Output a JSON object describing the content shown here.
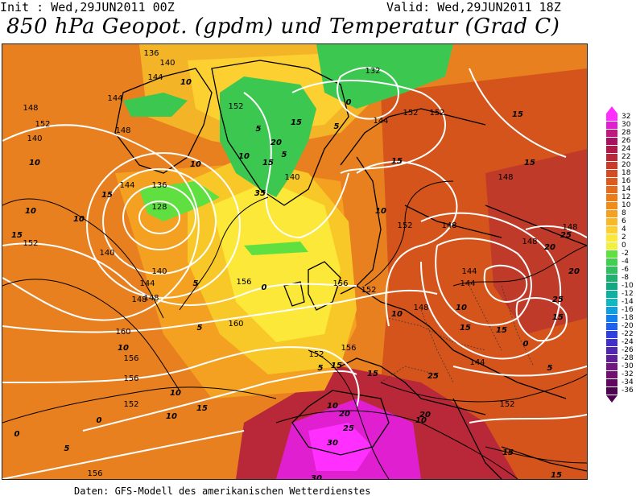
{
  "header": {
    "init": "Init : Wed,29JUN2011 00Z",
    "valid": "Valid: Wed,29JUN2011 18Z",
    "title": "850 hPa Geopot. (gpdm) und Temperatur (Grad C)"
  },
  "footer": "Daten: GFS-Modell des amerikanischen Wetterdienstes",
  "colorbar": {
    "values": [
      "32",
      "30",
      "28",
      "26",
      "24",
      "22",
      "20",
      "18",
      "16",
      "14",
      "12",
      "10",
      "8",
      "6",
      "4",
      "2",
      "0",
      "-2",
      "-4",
      "-6",
      "-8",
      "-10",
      "-12",
      "-14",
      "-16",
      "-18",
      "-20",
      "-22",
      "-24",
      "-26",
      "-28",
      "-30",
      "-32",
      "-34",
      "-36"
    ],
    "colors": [
      "#ff30ff",
      "#e020d0",
      "#c01880",
      "#a81060",
      "#b01848",
      "#b82838",
      "#c83c2c",
      "#d44c24",
      "#dc5c20",
      "#e46c1c",
      "#ec7c18",
      "#f08c18",
      "#f4a020",
      "#f8b828",
      "#fcd030",
      "#fce838",
      "#f0f040",
      "#60e040",
      "#40d050",
      "#30c060",
      "#20b070",
      "#10a880",
      "#10b0a0",
      "#10b8c0",
      "#10a0e0",
      "#1080f0",
      "#2060f0",
      "#3040e0",
      "#4030c8",
      "#5028b0",
      "#602098",
      "#701880",
      "#701070",
      "#600860",
      "#500050"
    ]
  },
  "map_labels": {
    "geopotential": [
      "136",
      "140",
      "144",
      "148",
      "152",
      "156",
      "160",
      "128",
      "132"
    ],
    "temperature": [
      "0",
      "5",
      "10",
      "15",
      "20",
      "25",
      "30",
      "35"
    ]
  },
  "placed_labels": [
    {
      "t": "136",
      "k": "g"
    },
    {
      "t": "140",
      "k": "g"
    },
    {
      "t": "144",
      "k": "g"
    },
    {
      "t": "148",
      "k": "g"
    },
    {
      "t": "152",
      "k": "g"
    },
    {
      "t": "140",
      "k": "g"
    },
    {
      "t": "144",
      "k": "g"
    },
    {
      "t": "148",
      "k": "g"
    },
    {
      "t": "152",
      "k": "g"
    },
    {
      "t": "156",
      "k": "g"
    },
    {
      "t": "160",
      "k": "g"
    },
    {
      "t": "156",
      "k": "g"
    },
    {
      "t": "160",
      "k": "g"
    },
    {
      "t": "156",
      "k": "g"
    },
    {
      "t": "152",
      "k": "g"
    },
    {
      "t": "148",
      "k": "g"
    },
    {
      "t": "144",
      "k": "g"
    },
    {
      "t": "140",
      "k": "g"
    },
    {
      "t": "136",
      "k": "g"
    },
    {
      "t": "128",
      "k": "g"
    },
    {
      "t": "132",
      "k": "g"
    },
    {
      "t": "144",
      "k": "g"
    },
    {
      "t": "152",
      "k": "g"
    },
    {
      "t": "156",
      "k": "g"
    },
    {
      "t": "152",
      "k": "g"
    },
    {
      "t": "148",
      "k": "g"
    },
    {
      "t": "144",
      "k": "g"
    },
    {
      "t": "148",
      "k": "g"
    },
    {
      "t": "152",
      "k": "g"
    },
    {
      "t": "156",
      "k": "g"
    },
    {
      "t": "148",
      "k": "g"
    },
    {
      "t": "144",
      "k": "g"
    },
    {
      "t": "140",
      "k": "g"
    },
    {
      "t": "152",
      "k": "g"
    },
    {
      "t": "156",
      "k": "g"
    },
    {
      "t": "152",
      "k": "g"
    },
    {
      "t": "148",
      "k": "g"
    },
    {
      "t": "144",
      "k": "g"
    },
    {
      "t": "152",
      "k": "g"
    },
    {
      "t": "140",
      "k": "g"
    },
    {
      "t": "152",
      "k": "g"
    },
    {
      "t": "148",
      "k": "g"
    },
    {
      "t": "148",
      "k": "g"
    },
    {
      "t": "144",
      "k": "g"
    },
    {
      "t": "10",
      "k": "t"
    },
    {
      "t": "10",
      "k": "t"
    },
    {
      "t": "15",
      "k": "t"
    },
    {
      "t": "10",
      "k": "t"
    },
    {
      "t": "15",
      "k": "t"
    },
    {
      "t": "10",
      "k": "t"
    },
    {
      "t": "5",
      "k": "t"
    },
    {
      "t": "5",
      "k": "t"
    },
    {
      "t": "10",
      "k": "t"
    },
    {
      "t": "10",
      "k": "t"
    },
    {
      "t": "15",
      "k": "t"
    },
    {
      "t": "15",
      "k": "t"
    },
    {
      "t": "15",
      "k": "t"
    },
    {
      "t": "10",
      "k": "t"
    },
    {
      "t": "10",
      "k": "t"
    },
    {
      "t": "10",
      "k": "t"
    },
    {
      "t": "15",
      "k": "t"
    },
    {
      "t": "15",
      "k": "t"
    },
    {
      "t": "20",
      "k": "t"
    },
    {
      "t": "25",
      "k": "t"
    },
    {
      "t": "25",
      "k": "t"
    },
    {
      "t": "30",
      "k": "t"
    },
    {
      "t": "30",
      "k": "t"
    },
    {
      "t": "20",
      "k": "t"
    },
    {
      "t": "20",
      "k": "t"
    },
    {
      "t": "25",
      "k": "t"
    },
    {
      "t": "15",
      "k": "t"
    },
    {
      "t": "15",
      "k": "t"
    },
    {
      "t": "10",
      "k": "t"
    },
    {
      "t": "15",
      "k": "t"
    },
    {
      "t": "20",
      "k": "t"
    },
    {
      "t": "20",
      "k": "t"
    },
    {
      "t": "25",
      "k": "t"
    },
    {
      "t": "15",
      "k": "t"
    },
    {
      "t": "10",
      "k": "t"
    },
    {
      "t": "15",
      "k": "t"
    },
    {
      "t": "15",
      "k": "t"
    },
    {
      "t": "20",
      "k": "t"
    },
    {
      "t": "5",
      "k": "t"
    },
    {
      "t": "0",
      "k": "t"
    },
    {
      "t": "0",
      "k": "t"
    },
    {
      "t": "5",
      "k": "t"
    },
    {
      "t": "5",
      "k": "t"
    },
    {
      "t": "0",
      "k": "t"
    },
    {
      "t": "5",
      "k": "t"
    },
    {
      "t": "0",
      "k": "t"
    },
    {
      "t": "5",
      "k": "t"
    },
    {
      "t": "10",
      "k": "t"
    },
    {
      "t": "15",
      "k": "t"
    },
    {
      "t": "10",
      "k": "t"
    },
    {
      "t": "10",
      "k": "t"
    },
    {
      "t": "5",
      "k": "t"
    },
    {
      "t": "0",
      "k": "t"
    },
    {
      "t": "5",
      "k": "t"
    },
    {
      "t": "15",
      "k": "t"
    },
    {
      "t": "20",
      "k": "t"
    },
    {
      "t": "35",
      "k": "t"
    }
  ]
}
